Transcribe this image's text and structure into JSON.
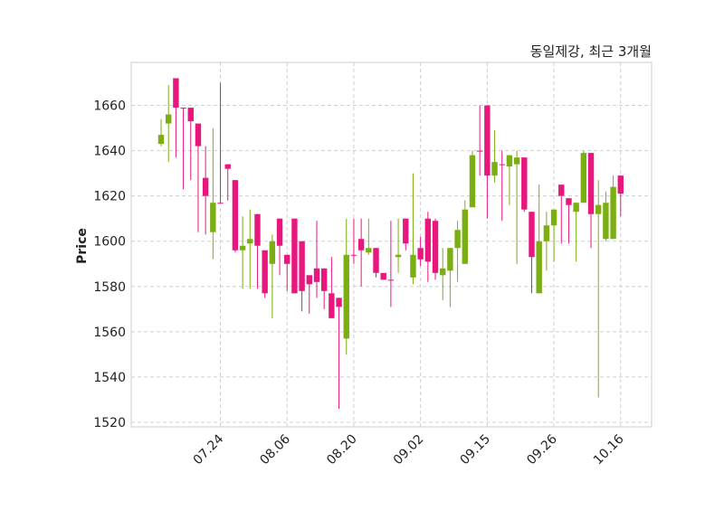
{
  "chart_data": {
    "type": "candlestick",
    "title": "동일제강, 최근 3개월",
    "xlabel": "",
    "ylabel": "Price",
    "ylim": [
      1518,
      1679
    ],
    "yticks": [
      1520,
      1540,
      1560,
      1580,
      1600,
      1620,
      1640,
      1660
    ],
    "xtick_labels": [
      {
        "index": 8,
        "label": "07.24"
      },
      {
        "index": 17,
        "label": "08.06"
      },
      {
        "index": 26,
        "label": "08.20"
      },
      {
        "index": 35,
        "label": "09.02"
      },
      {
        "index": 44,
        "label": "09.15"
      },
      {
        "index": 53,
        "label": "09.26"
      },
      {
        "index": 62,
        "label": "10.16"
      }
    ],
    "grid": true,
    "colors": {
      "up": "#e8177d",
      "down": "#7aae12"
    },
    "ohlc": [
      [
        1647,
        1654,
        1642,
        1643
      ],
      [
        1656,
        1669,
        1635,
        1652
      ],
      [
        1659,
        1672,
        1637,
        1672
      ],
      [
        1659,
        1659,
        1623,
        1659
      ],
      [
        1653,
        1659,
        1627,
        1659
      ],
      [
        1642,
        1652,
        1604,
        1652
      ],
      [
        1620,
        1642,
        1603,
        1628
      ],
      [
        1617,
        1650,
        1592,
        1604
      ],
      [
        1617,
        1670,
        1617,
        1617
      ],
      [
        1632,
        1634,
        1618,
        1634
      ],
      [
        1596,
        1627,
        1595,
        1627
      ],
      [
        1598,
        1611,
        1579,
        1596
      ],
      [
        1601,
        1614,
        1579,
        1599
      ],
      [
        1598,
        1612,
        1579,
        1612
      ],
      [
        1577,
        1596,
        1575,
        1596
      ],
      [
        1600,
        1603,
        1566,
        1590
      ],
      [
        1598,
        1610,
        1585,
        1610
      ],
      [
        1590,
        1594,
        1578,
        1594
      ],
      [
        1577,
        1610,
        1577,
        1610
      ],
      [
        1578,
        1600,
        1569,
        1600
      ],
      [
        1581,
        1585,
        1568,
        1585
      ],
      [
        1582,
        1609,
        1575,
        1588
      ],
      [
        1578,
        1588,
        1570,
        1588
      ],
      [
        1566,
        1593,
        1566,
        1577
      ],
      [
        1571,
        1575,
        1526,
        1575
      ],
      [
        1594,
        1610,
        1550,
        1557
      ],
      [
        1594,
        1610,
        1590,
        1594
      ],
      [
        1596,
        1610,
        1580,
        1601
      ],
      [
        1597,
        1610,
        1594,
        1595
      ],
      [
        1586,
        1597,
        1584,
        1597
      ],
      [
        1583,
        1586,
        1583,
        1586
      ],
      [
        1583,
        1609,
        1571,
        1583
      ],
      [
        1594,
        1610,
        1586,
        1593
      ],
      [
        1599,
        1610,
        1596,
        1610
      ],
      [
        1594,
        1630,
        1581,
        1584
      ],
      [
        1592,
        1602,
        1589,
        1597
      ],
      [
        1591,
        1613,
        1582,
        1610
      ],
      [
        1586,
        1610,
        1583,
        1609
      ],
      [
        1588,
        1597,
        1574,
        1585
      ],
      [
        1597,
        1597,
        1571,
        1587
      ],
      [
        1605,
        1609,
        1582,
        1597
      ],
      [
        1614,
        1618,
        1590,
        1590
      ],
      [
        1638,
        1640,
        1615,
        1615
      ],
      [
        1640,
        1660,
        1629,
        1640
      ],
      [
        1629,
        1660,
        1610,
        1660
      ],
      [
        1635,
        1649,
        1626,
        1629
      ],
      [
        1634,
        1640,
        1609,
        1634
      ],
      [
        1638,
        1638,
        1616,
        1633
      ],
      [
        1637,
        1640,
        1590,
        1634
      ],
      [
        1614,
        1637,
        1613,
        1637
      ],
      [
        1593,
        1613,
        1577,
        1613
      ],
      [
        1600,
        1625,
        1577,
        1577
      ],
      [
        1607,
        1613,
        1587,
        1600
      ],
      [
        1614,
        1614,
        1591,
        1607
      ],
      [
        1620,
        1625,
        1599,
        1625
      ],
      [
        1616,
        1619,
        1599,
        1619
      ],
      [
        1617,
        1617,
        1591,
        1613
      ],
      [
        1639,
        1640,
        1617,
        1617
      ],
      [
        1612,
        1639,
        1597,
        1639
      ],
      [
        1616,
        1627,
        1531,
        1612
      ],
      [
        1617,
        1622,
        1600,
        1601
      ],
      [
        1624,
        1629,
        1601,
        1601
      ],
      [
        1621,
        1629,
        1611,
        1629
      ]
    ]
  }
}
